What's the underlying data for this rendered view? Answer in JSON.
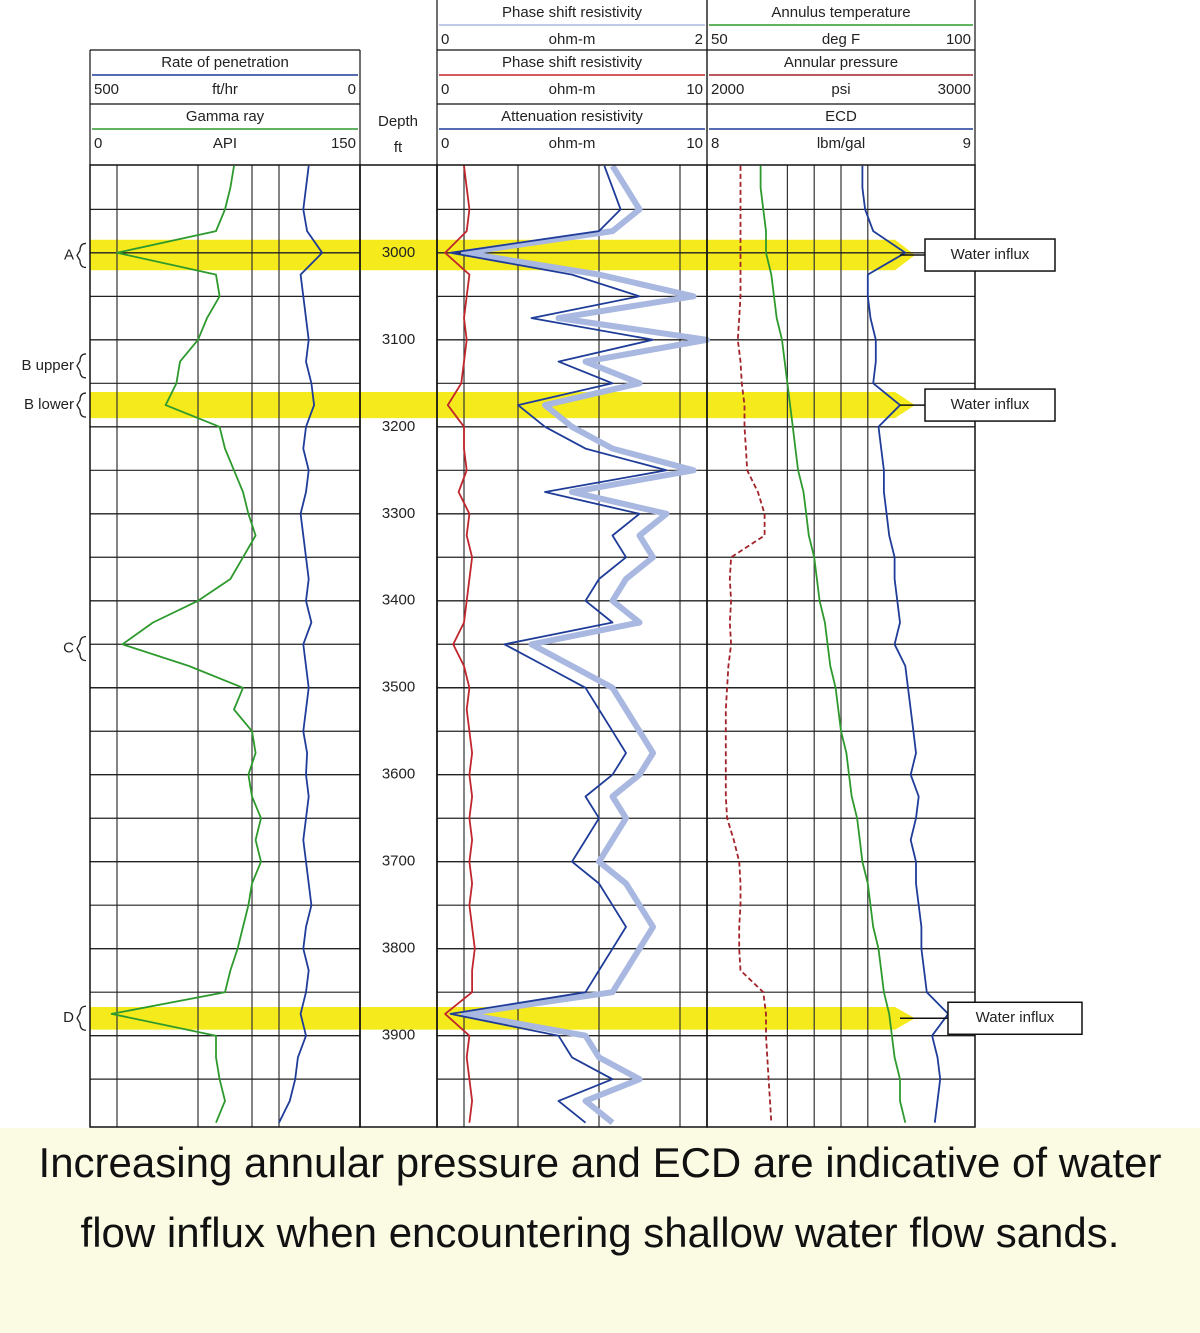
{
  "chart_data": {
    "type": "well_log",
    "depth_label": "Depth",
    "depth_unit": "ft",
    "ylim": [
      2899,
      4005
    ],
    "yticks": [
      3000,
      3100,
      3200,
      3300,
      3400,
      3500,
      3600,
      3700,
      3800,
      3900
    ],
    "minor_yticks": [
      2950,
      3050,
      3150,
      3250,
      3350,
      3450,
      3550,
      3650,
      3750,
      3850,
      3950
    ],
    "depth": [
      2900,
      2925,
      2950,
      2975,
      3000,
      3025,
      3050,
      3075,
      3100,
      3125,
      3150,
      3175,
      3200,
      3225,
      3250,
      3275,
      3300,
      3325,
      3350,
      3375,
      3400,
      3425,
      3450,
      3475,
      3500,
      3525,
      3550,
      3575,
      3600,
      3625,
      3650,
      3675,
      3700,
      3725,
      3750,
      3775,
      3800,
      3825,
      3850,
      3875,
      3900,
      3925,
      3950,
      3975,
      4000
    ],
    "tracks": [
      {
        "curves": [
          {
            "name": "Rate of penetration",
            "unit": "ft/hr",
            "xlim": [
              500,
              0
            ],
            "color": "#1f3c99",
            "values": [
              95,
              100,
              105,
              98,
              70,
              110,
              105,
              100,
              95,
              100,
              90,
              85,
              100,
              105,
              95,
              100,
              110,
              105,
              100,
              95,
              100,
              90,
              105,
              100,
              95,
              100,
              105,
              98,
              100,
              95,
              100,
              105,
              100,
              95,
              90,
              100,
              105,
              95,
              100,
              110,
              100,
              115,
              120,
              130,
              150
            ]
          },
          {
            "name": "Gamma ray",
            "unit": "API",
            "xlim": [
              0,
              150
            ],
            "color": "#2e9a2e",
            "values": [
              80,
              78,
              75,
              70,
              15,
              70,
              72,
              65,
              60,
              50,
              48,
              42,
              72,
              75,
              80,
              85,
              88,
              92,
              85,
              78,
              60,
              35,
              18,
              55,
              85,
              80,
              90,
              92,
              88,
              90,
              95,
              92,
              95,
              90,
              88,
              85,
              82,
              78,
              75,
              12,
              70,
              70,
              72,
              75,
              70
            ]
          }
        ]
      },
      {
        "curves": [
          {
            "name": "Phase shift resistivity",
            "unit": "ohm-m",
            "xlim": [
              0,
              2
            ],
            "color": "#a9b8e0",
            "values": [
              1.3,
              1.4,
              1.5,
              1.3,
              0.2,
              1.2,
              1.9,
              0.9,
              2.0,
              1.1,
              1.5,
              0.8,
              1.0,
              1.3,
              1.9,
              1.0,
              1.7,
              1.5,
              1.6,
              1.4,
              1.3,
              1.5,
              0.7,
              1.0,
              1.3,
              1.4,
              1.5,
              1.6,
              1.5,
              1.3,
              1.4,
              1.3,
              1.2,
              1.4,
              1.5,
              1.6,
              1.5,
              1.4,
              1.3,
              0.2,
              1.1,
              1.2,
              1.5,
              1.1,
              1.3
            ]
          },
          {
            "name": "Phase shift resistivity",
            "unit": "ohm-m",
            "xlim": [
              0,
              10
            ],
            "color": "#c0262c",
            "values": [
              1.0,
              1.1,
              1.2,
              1.1,
              0.3,
              1.2,
              1.1,
              1.0,
              1.1,
              1.0,
              0.9,
              0.4,
              1.0,
              1.0,
              1.1,
              0.8,
              1.2,
              1.1,
              1.3,
              1.2,
              1.1,
              1.0,
              0.6,
              1.0,
              1.2,
              1.1,
              1.2,
              1.3,
              1.2,
              1.3,
              1.2,
              1.3,
              1.2,
              1.3,
              1.2,
              1.3,
              1.4,
              1.3,
              1.3,
              0.3,
              1.2,
              1.1,
              1.2,
              1.3,
              1.2
            ]
          },
          {
            "name": "Attenuation resistivity",
            "unit": "ohm-m",
            "xlim": [
              0,
              10
            ],
            "color": "#1f3c99",
            "values": [
              6.2,
              6.5,
              6.8,
              6.0,
              0.5,
              5.0,
              7.5,
              3.5,
              8.0,
              4.5,
              6.5,
              3.0,
              4.0,
              5.5,
              8.5,
              4.0,
              7.5,
              6.5,
              7.0,
              6.0,
              5.5,
              6.5,
              2.5,
              4.0,
              5.5,
              6.0,
              6.5,
              7.0,
              6.5,
              5.5,
              6.0,
              5.5,
              5.0,
              6.0,
              6.5,
              7.0,
              6.5,
              6.0,
              5.5,
              0.5,
              4.5,
              5.0,
              6.5,
              4.5,
              5.5
            ]
          }
        ]
      },
      {
        "curves": [
          {
            "name": "Annulus temperature",
            "unit": "deg F",
            "xlim": [
              50,
              100
            ],
            "color": "#2e9a2e",
            "values": [
              60,
              60,
              60.5,
              61,
              61,
              62,
              62.5,
              63,
              64,
              64.5,
              65,
              65.5,
              66,
              66.5,
              67,
              68,
              68.5,
              69,
              70,
              70.5,
              71,
              72,
              72.5,
              73,
              74,
              74.5,
              75,
              76,
              76.5,
              77,
              78,
              78.5,
              79,
              80,
              80.5,
              81,
              82,
              82.5,
              83,
              84,
              84.5,
              85,
              86,
              86,
              87
            ]
          },
          {
            "name": "Annular pressure",
            "unit": "psi",
            "xlim": [
              2000,
              3000
            ],
            "color": "#a3232a",
            "line_style": "dashed",
            "values": [
              2125,
              2125,
              2125,
              2125,
              2125,
              2125,
              2125,
              2120,
              2115,
              2125,
              2130,
              2140,
              2140,
              2145,
              2150,
              2190,
              2215,
              2215,
              2090,
              2085,
              2090,
              2085,
              2090,
              2080,
              2075,
              2070,
              2070,
              2070,
              2070,
              2070,
              2075,
              2100,
              2120,
              2125,
              2125,
              2120,
              2120,
              2125,
              2210,
              2220,
              2220,
              2225,
              2230,
              2235,
              2240
            ]
          },
          {
            "name": "ECD",
            "unit": "lbm/gal",
            "xlim": [
              8,
              9
            ],
            "color": "#1f3c99",
            "values": [
              8.58,
              8.58,
              8.59,
              8.62,
              8.74,
              8.6,
              8.6,
              8.61,
              8.63,
              8.63,
              8.62,
              8.72,
              8.64,
              8.65,
              8.66,
              8.66,
              8.67,
              8.68,
              8.7,
              8.7,
              8.71,
              8.72,
              8.7,
              8.74,
              8.75,
              8.76,
              8.77,
              8.78,
              8.76,
              8.79,
              8.78,
              8.76,
              8.78,
              8.78,
              8.79,
              8.8,
              8.8,
              8.81,
              8.82,
              8.9,
              8.84,
              8.86,
              8.87,
              8.86,
              8.85
            ]
          }
        ]
      }
    ],
    "zones": [
      {
        "label": "A",
        "depth": 3003,
        "band": [
          2985,
          3020
        ],
        "annotation": "Water influx"
      },
      {
        "label": "B upper",
        "depth": 3130
      },
      {
        "label": "B lower",
        "depth": 3175,
        "band": [
          3160,
          3190
        ],
        "annotation": "Water influx"
      },
      {
        "label": "C",
        "depth": 3455
      },
      {
        "label": "D",
        "depth": 3880,
        "band": [
          3867,
          3893
        ],
        "annotation": "Water influx"
      }
    ],
    "band_color": "#f4ea1c",
    "caption": "Increasing annular pressure and ECD are indicative of water flow influx when encountering shallow water flow sands."
  }
}
